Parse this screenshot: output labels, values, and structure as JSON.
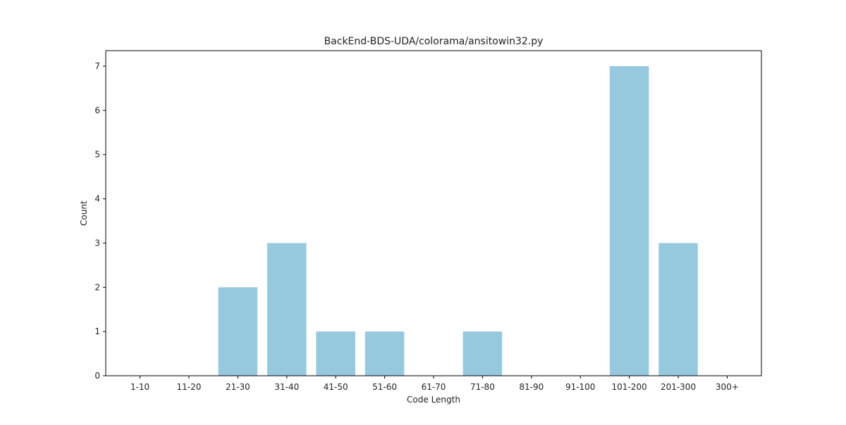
{
  "chart_data": {
    "type": "bar",
    "title": "BackEnd-BDS-UDA/colorama/ansitowin32.py",
    "xlabel": "Code Length",
    "ylabel": "Count",
    "categories": [
      "1-10",
      "11-20",
      "21-30",
      "31-40",
      "41-50",
      "51-60",
      "61-70",
      "71-80",
      "81-90",
      "91-100",
      "101-200",
      "201-300",
      "300+"
    ],
    "values": [
      0,
      0,
      2,
      3,
      1,
      1,
      0,
      1,
      0,
      0,
      7,
      3,
      0
    ],
    "ylim": [
      0,
      7.35
    ],
    "yticks": [
      0,
      1,
      2,
      3,
      4,
      5,
      6,
      7
    ],
    "grid": false,
    "bar_color": "#96c9de"
  }
}
